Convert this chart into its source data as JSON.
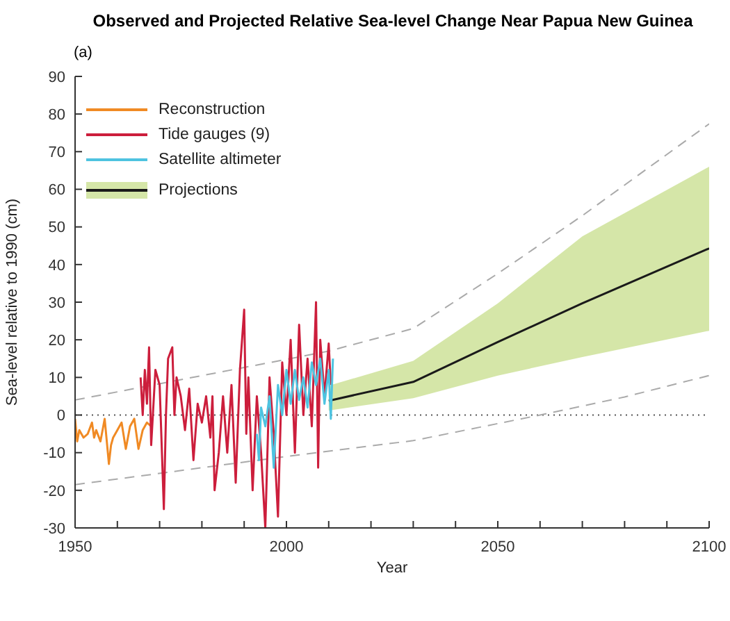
{
  "chart_data": {
    "type": "line",
    "title": "Observed and Projected Relative Sea-level Change Near Papua New Guinea",
    "subtitle": "(a)",
    "xlabel": "Year",
    "ylabel": "Sea-level relative to 1990 (cm)",
    "xlim": [
      1950,
      2100
    ],
    "xticks": [
      1950,
      {
        "value": 1960,
        "label": null
      },
      {
        "value": 1970,
        "label": null
      },
      {
        "value": 1980,
        "label": null
      },
      {
        "value": 1990,
        "label": null
      },
      2000,
      {
        "value": 2010,
        "label": null
      },
      {
        "value": 2020,
        "label": null
      },
      {
        "value": 2030,
        "label": null
      },
      {
        "value": 2040,
        "label": null
      },
      2050,
      {
        "value": 2060,
        "label": null
      },
      {
        "value": 2070,
        "label": null
      },
      {
        "value": 2080,
        "label": null
      },
      {
        "value": 2090,
        "label": null
      },
      2100
    ],
    "ylim": [
      -30,
      90
    ],
    "yticks": [
      -30,
      -20,
      -10,
      0,
      10,
      20,
      30,
      40,
      50,
      60,
      70,
      80,
      90
    ],
    "legend": "top left",
    "grid": false,
    "ref_lines": [
      {
        "axis": "y",
        "value": 0,
        "color": "#555555",
        "line_style": "dotted"
      }
    ],
    "series": [
      {
        "color": "#aaaaaa",
        "line_style": "dashed",
        "x": [
          1950,
          2000,
          2010,
          2030,
          2050,
          2070,
          2100
        ],
        "values": [
          4,
          14.8,
          17,
          23,
          37.6,
          53,
          77.4
        ]
      },
      {
        "color": "#aaaaaa",
        "line_style": "dashed",
        "x": [
          1950,
          2000,
          2030,
          2060,
          2080,
          2100
        ],
        "values": [
          -18.5,
          -11,
          -6.8,
          0,
          4.8,
          10.5
        ]
      },
      {
        "name": "Projections",
        "color": "#1a1a1a",
        "colors": [
          "#d5e6a8",
          "#d5e6a8",
          "#d5e6a8",
          "#d5e6a8",
          "#d5e6a8"
        ],
        "x": [
          2010,
          2030,
          2050,
          2070,
          2100
        ],
        "values": [
          3.8,
          8.8,
          19.4,
          29.7,
          44.3
        ],
        "lower": [
          1.2,
          4.5,
          10.5,
          15.4,
          22.4
        ],
        "upper": [
          7.8,
          14.4,
          29.7,
          47.5,
          66
        ]
      },
      {
        "name": "Reconstruction",
        "color": "#f08a24",
        "x": [
          1950,
          1950.5,
          1951,
          1952,
          1953,
          1954,
          1954.5,
          1955,
          1956,
          1957,
          1958,
          1958.5,
          1959,
          1960,
          1961,
          1962,
          1963,
          1964,
          1965,
          1966,
          1967,
          1968
        ],
        "values": [
          -1,
          -7,
          -4,
          -6,
          -5,
          -2,
          -6,
          -4,
          -7,
          -1,
          -13,
          -8,
          -6,
          -4,
          -2,
          -9,
          -3,
          -1,
          -9,
          -4,
          -2,
          -3
        ]
      },
      {
        "name": "Tide gauges (9)",
        "color": "#cc1e3c",
        "x": [
          1965.5,
          1966,
          1966.5,
          1967,
          1967.5,
          1968,
          1969,
          1970,
          1971,
          1971.5,
          1972,
          1973,
          1973.5,
          1974,
          1975,
          1976,
          1977,
          1978,
          1979,
          1980,
          1981,
          1982,
          1982.5,
          1983,
          1984,
          1985,
          1986,
          1987,
          1988,
          1989,
          1990,
          1990.5,
          1991,
          1992,
          1993,
          1994,
          1995,
          1996,
          1997,
          1998,
          1999,
          2000,
          2001,
          2002,
          2003,
          2004,
          2005,
          2006,
          2007,
          2007.5,
          2008,
          2009,
          2010,
          2010.5
        ],
        "values": [
          10,
          0,
          12,
          3,
          18,
          -8,
          12,
          8,
          -25,
          0,
          15,
          18,
          0,
          10,
          5,
          -4,
          7,
          -12,
          3,
          -2,
          5,
          -6,
          5,
          -20,
          -10,
          5,
          -10,
          8,
          -18,
          12,
          28,
          -5,
          10,
          -20,
          5,
          -10,
          -30,
          10,
          -5,
          -27,
          14,
          0,
          20,
          -10,
          24,
          0,
          15,
          -3,
          30,
          -14,
          20,
          5,
          19,
          8
        ]
      },
      {
        "name": "Satellite altimeter",
        "color": "#4ec3e0",
        "x": [
          1993,
          1993.5,
          1994,
          1995,
          1996,
          1997,
          1998,
          1999,
          2000,
          2001,
          2002,
          2003,
          2004,
          2005,
          2006,
          2007,
          2008,
          2009,
          2010,
          2010.5,
          2011
        ],
        "values": [
          -5,
          -12,
          2,
          -3,
          5,
          -14,
          8,
          0,
          12,
          3,
          12,
          4,
          10,
          2,
          14,
          8,
          15,
          3,
          12,
          -1,
          15
        ]
      }
    ]
  }
}
